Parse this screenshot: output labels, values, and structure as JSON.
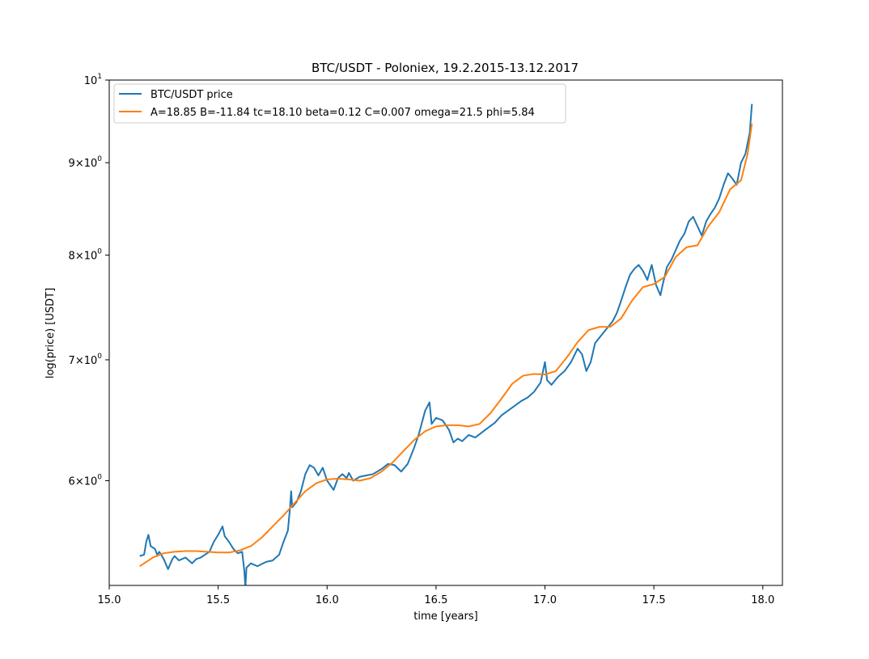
{
  "chart_data": {
    "type": "line",
    "title": "BTC/USDT - Poloniex, 19.2.2015-13.12.2017",
    "xlabel": "time [years]",
    "ylabel": "log(price) [USDT]",
    "xlim": [
      15.0,
      18.09
    ],
    "ylim": [
      5.25,
      10.0
    ],
    "yscale": "log",
    "grid": false,
    "legend_position": "upper-left",
    "x_ticks": [
      {
        "value": 15.0,
        "label": "15.0"
      },
      {
        "value": 15.5,
        "label": "15.5"
      },
      {
        "value": 16.0,
        "label": "16.0"
      },
      {
        "value": 16.5,
        "label": "16.5"
      },
      {
        "value": 17.0,
        "label": "17.0"
      },
      {
        "value": 17.5,
        "label": "17.5"
      },
      {
        "value": 18.0,
        "label": "18.0"
      }
    ],
    "y_ticks": [
      {
        "value": 6,
        "mant": "6",
        "exp": "0"
      },
      {
        "value": 7,
        "mant": "7",
        "exp": "0"
      },
      {
        "value": 8,
        "mant": "8",
        "exp": "0"
      },
      {
        "value": 9,
        "mant": "9",
        "exp": "0"
      },
      {
        "value": 10,
        "mant": "10",
        "exp": "1"
      }
    ],
    "series": [
      {
        "name": "BTC/USDT price",
        "color": "#1f77b4",
        "x": [
          15.14,
          15.16,
          15.17,
          15.18,
          15.19,
          15.21,
          15.22,
          15.23,
          15.25,
          15.27,
          15.29,
          15.3,
          15.32,
          15.35,
          15.38,
          15.4,
          15.42,
          15.44,
          15.46,
          15.48,
          15.5,
          15.52,
          15.53,
          15.55,
          15.57,
          15.59,
          15.61,
          15.62,
          15.625,
          15.63,
          15.65,
          15.68,
          15.72,
          15.75,
          15.78,
          15.8,
          15.82,
          15.83,
          15.835,
          15.84,
          15.86,
          15.88,
          15.9,
          15.92,
          15.94,
          15.96,
          15.98,
          16.0,
          16.03,
          16.05,
          16.07,
          16.09,
          16.1,
          16.12,
          16.15,
          16.18,
          16.21,
          16.25,
          16.28,
          16.31,
          16.34,
          16.37,
          16.4,
          16.42,
          16.45,
          16.47,
          16.48,
          16.5,
          16.53,
          16.56,
          16.58,
          16.6,
          16.62,
          16.65,
          16.68,
          16.71,
          16.74,
          16.77,
          16.8,
          16.83,
          16.86,
          16.89,
          16.92,
          16.95,
          16.98,
          17.0,
          17.01,
          17.03,
          17.06,
          17.09,
          17.12,
          17.15,
          17.17,
          17.19,
          17.21,
          17.23,
          17.25,
          17.27,
          17.29,
          17.31,
          17.33,
          17.35,
          17.37,
          17.39,
          17.41,
          17.43,
          17.45,
          17.47,
          17.49,
          17.51,
          17.53,
          17.54,
          17.56,
          17.58,
          17.6,
          17.62,
          17.64,
          17.66,
          17.68,
          17.7,
          17.72,
          17.74,
          17.76,
          17.78,
          17.8,
          17.82,
          17.84,
          17.86,
          17.88,
          17.9,
          17.92,
          17.94,
          17.95
        ],
        "y": [
          5.45,
          5.46,
          5.55,
          5.6,
          5.52,
          5.5,
          5.46,
          5.48,
          5.43,
          5.36,
          5.43,
          5.45,
          5.42,
          5.44,
          5.4,
          5.43,
          5.44,
          5.46,
          5.48,
          5.55,
          5.6,
          5.66,
          5.59,
          5.55,
          5.5,
          5.47,
          5.48,
          5.35,
          5.24,
          5.37,
          5.4,
          5.38,
          5.41,
          5.42,
          5.46,
          5.55,
          5.63,
          5.8,
          5.92,
          5.8,
          5.84,
          5.92,
          6.05,
          6.12,
          6.1,
          6.04,
          6.1,
          6.0,
          5.93,
          6.02,
          6.05,
          6.02,
          6.06,
          6.0,
          6.03,
          6.04,
          6.05,
          6.09,
          6.13,
          6.12,
          6.07,
          6.13,
          6.26,
          6.36,
          6.56,
          6.63,
          6.45,
          6.5,
          6.48,
          6.4,
          6.3,
          6.33,
          6.31,
          6.36,
          6.34,
          6.38,
          6.42,
          6.46,
          6.52,
          6.56,
          6.6,
          6.64,
          6.67,
          6.72,
          6.8,
          6.98,
          6.82,
          6.78,
          6.85,
          6.9,
          6.98,
          7.1,
          7.05,
          6.9,
          6.98,
          7.15,
          7.2,
          7.25,
          7.3,
          7.35,
          7.43,
          7.55,
          7.68,
          7.8,
          7.86,
          7.9,
          7.84,
          7.75,
          7.9,
          7.7,
          7.6,
          7.7,
          7.88,
          7.95,
          8.05,
          8.15,
          8.22,
          8.35,
          8.4,
          8.3,
          8.2,
          8.35,
          8.43,
          8.5,
          8.6,
          8.75,
          8.88,
          8.82,
          8.75,
          9.0,
          9.1,
          9.35,
          9.7
        ],
        "line_width": 2
      },
      {
        "name": "A=18.85 B=-11.84 tc=18.10 beta=0.12 C=0.007 omega=21.5 phi=5.84",
        "color": "#ff7f0e",
        "x": [
          15.14,
          15.2,
          15.25,
          15.3,
          15.35,
          15.4,
          15.45,
          15.5,
          15.55,
          15.6,
          15.65,
          15.7,
          15.75,
          15.8,
          15.85,
          15.9,
          15.95,
          16.0,
          16.05,
          16.1,
          16.15,
          16.2,
          16.25,
          16.3,
          16.35,
          16.4,
          16.45,
          16.5,
          16.55,
          16.6,
          16.65,
          16.7,
          16.75,
          16.8,
          16.85,
          16.9,
          16.95,
          17.0,
          17.05,
          17.1,
          17.15,
          17.2,
          17.25,
          17.3,
          17.35,
          17.4,
          17.45,
          17.5,
          17.55,
          17.6,
          17.65,
          17.7,
          17.75,
          17.8,
          17.85,
          17.9,
          17.93,
          17.95
        ],
        "y": [
          5.38,
          5.44,
          5.47,
          5.48,
          5.485,
          5.485,
          5.48,
          5.475,
          5.475,
          5.49,
          5.52,
          5.58,
          5.66,
          5.74,
          5.83,
          5.92,
          5.98,
          6.01,
          6.015,
          6.01,
          6.0,
          6.02,
          6.07,
          6.14,
          6.23,
          6.32,
          6.39,
          6.43,
          6.44,
          6.44,
          6.43,
          6.45,
          6.54,
          6.66,
          6.79,
          6.86,
          6.875,
          6.87,
          6.9,
          7.02,
          7.16,
          7.27,
          7.3,
          7.3,
          7.38,
          7.55,
          7.68,
          7.71,
          7.78,
          7.98,
          8.08,
          8.1,
          8.3,
          8.45,
          8.7,
          8.8,
          9.1,
          9.46
        ],
        "line_width": 2
      }
    ]
  }
}
